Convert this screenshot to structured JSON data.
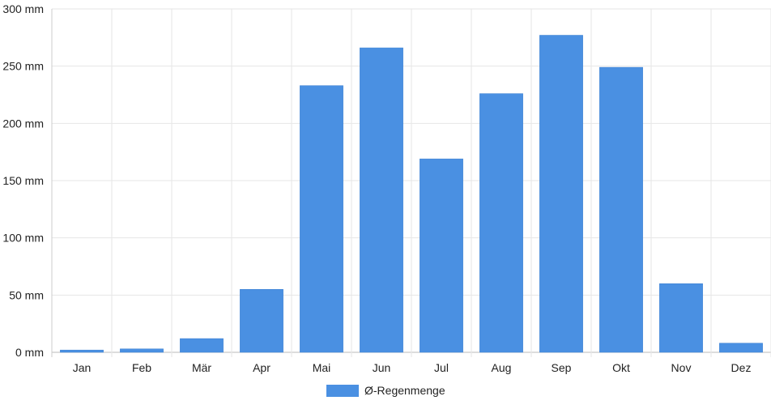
{
  "chart_data": {
    "type": "bar",
    "categories": [
      "Jan",
      "Feb",
      "Mär",
      "Apr",
      "Mai",
      "Jun",
      "Jul",
      "Aug",
      "Sep",
      "Okt",
      "Nov",
      "Dez"
    ],
    "series": [
      {
        "name": "Ø-Regenmenge",
        "values": [
          2,
          3,
          12,
          55,
          233,
          266,
          169,
          226,
          277,
          249,
          60,
          8
        ],
        "color": "#4a90e2"
      }
    ],
    "ylim": [
      0,
      300
    ],
    "yticks": [
      0,
      50,
      100,
      150,
      200,
      250,
      300
    ],
    "ytick_suffix": " mm",
    "grid": true,
    "legend_position": "bottom-center"
  }
}
